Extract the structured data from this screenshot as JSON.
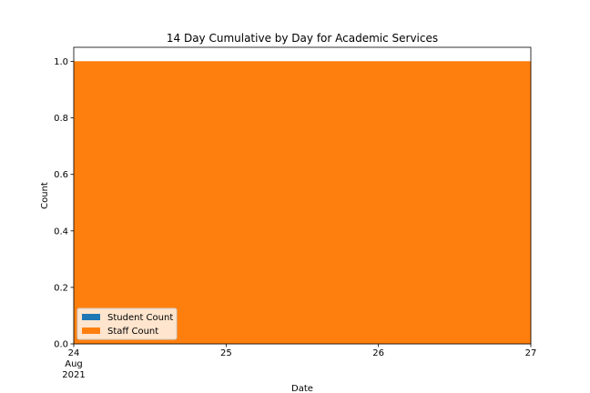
{
  "chart_data": {
    "type": "area",
    "title": "14 Day Cumulative by Day for Academic Services",
    "xlabel": "Date",
    "ylabel": "Count",
    "x": [
      "2021-08-24",
      "2021-08-25",
      "2021-08-26",
      "2021-08-27"
    ],
    "xlim": [
      "2021-08-24",
      "2021-08-27"
    ],
    "ylim": [
      0,
      1.05
    ],
    "x_ticks": [
      {
        "value": "2021-08-24",
        "lines": [
          "24",
          "Aug",
          "2021"
        ]
      },
      {
        "value": "2021-08-25",
        "lines": [
          "25"
        ]
      },
      {
        "value": "2021-08-26",
        "lines": [
          "26"
        ]
      },
      {
        "value": "2021-08-27",
        "lines": [
          "27"
        ]
      }
    ],
    "y_ticks": [
      "0.0",
      "0.2",
      "0.4",
      "0.6",
      "0.8",
      "1.0"
    ],
    "stacked": true,
    "grid": false,
    "legend_position": "lower-left",
    "series": [
      {
        "name": "Student Count",
        "color": "#1f77b4",
        "values": [
          0,
          0,
          0,
          0
        ]
      },
      {
        "name": "Staff Count",
        "color": "#ff7f0e",
        "values": [
          1,
          1,
          1,
          1
        ]
      }
    ]
  }
}
